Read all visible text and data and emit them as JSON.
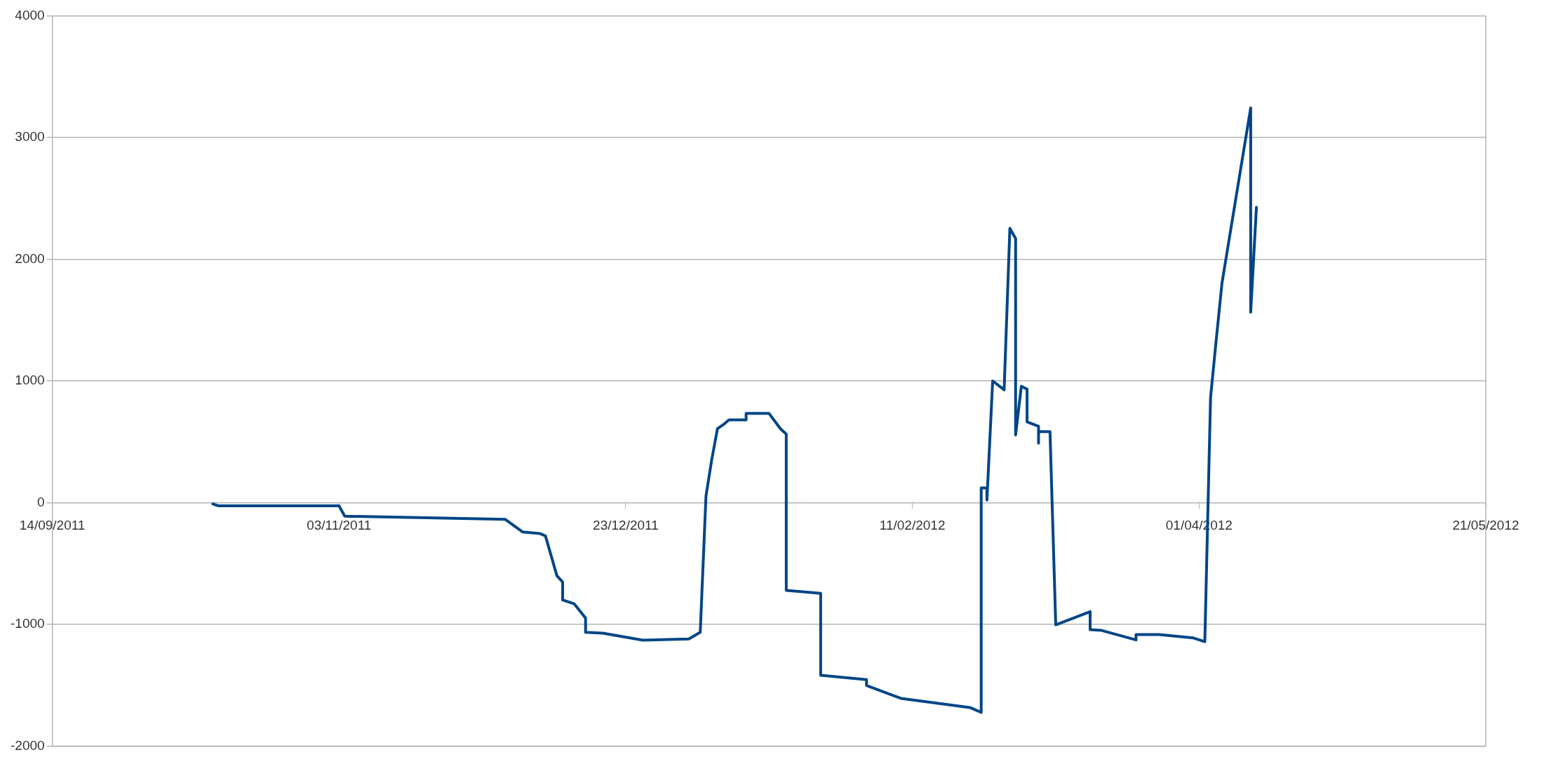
{
  "chart_data": {
    "type": "line",
    "x": [
      "2011-10-12",
      "2011-10-13",
      "2011-11-03",
      "2011-11-04",
      "2011-12-02",
      "2011-12-05",
      "2011-12-08",
      "2011-12-09",
      "2011-12-11",
      "2011-12-12",
      "2011-12-12",
      "2011-12-14",
      "2011-12-16",
      "2011-12-16",
      "2011-12-19",
      "2011-12-26",
      "2012-01-03",
      "2012-01-05",
      "2012-01-06",
      "2012-01-07",
      "2012-01-08",
      "2012-01-09",
      "2012-01-10",
      "2012-01-13",
      "2012-01-13",
      "2012-01-17",
      "2012-01-19",
      "2012-01-20",
      "2012-01-20",
      "2012-01-26",
      "2012-01-26",
      "2012-02-03",
      "2012-02-03",
      "2012-02-09",
      "2012-02-21",
      "2012-02-23",
      "2012-02-23",
      "2012-02-24",
      "2012-02-24",
      "2012-02-25",
      "2012-02-27",
      "2012-02-28",
      "2012-02-29",
      "2012-02-29",
      "2012-03-01",
      "2012-03-02",
      "2012-03-02",
      "2012-03-04",
      "2012-03-04",
      "2012-03-04",
      "2012-03-06",
      "2012-03-07",
      "2012-03-13",
      "2012-03-13",
      "2012-03-15",
      "2012-03-21",
      "2012-03-21",
      "2012-03-25",
      "2012-03-31",
      "2012-04-02",
      "2012-04-03",
      "2012-04-04",
      "2012-04-05",
      "2012-04-10",
      "2012-04-10",
      "2012-04-11"
    ],
    "series": [
      {
        "color": "#004586",
        "values": [
          -10,
          -26,
          -26,
          -111,
          -137,
          -240,
          -253,
          -273,
          -600,
          -652,
          -799,
          -830,
          -948,
          -1064,
          -1072,
          -1129,
          -1119,
          -1064,
          55,
          353,
          607,
          640,
          680,
          680,
          733,
          733,
          607,
          563,
          -720,
          -744,
          -1417,
          -1453,
          -1501,
          -1607,
          -1682,
          -1722,
          121,
          121,
          22,
          1000,
          927,
          2253,
          2170,
          556,
          957,
          932,
          664,
          627,
          488,
          583,
          583,
          -1003,
          -895,
          -1043,
          -1049,
          -1127,
          -1083,
          -1083,
          -1111,
          -1142,
          864,
          1343,
          1806,
          3243,
          1565,
          2426
        ]
      }
    ],
    "xlim": [
      "2011-09-14",
      "2012-05-21"
    ],
    "xticks": [
      {
        "value": "2011-09-14",
        "label": "14/09/2011"
      },
      {
        "value": "2011-11-03",
        "label": "03/11/2011"
      },
      {
        "value": "2011-12-23",
        "label": "23/12/2011"
      },
      {
        "value": "2012-02-11",
        "label": "11/02/2012"
      },
      {
        "value": "2012-04-01",
        "label": "01/04/2012"
      },
      {
        "value": "2012-05-21",
        "label": "21/05/2012"
      }
    ],
    "ylim": [
      -2000,
      4000
    ],
    "yticks": [
      -2000,
      -1000,
      0,
      1000,
      2000,
      3000,
      4000
    ],
    "grid": "y",
    "legend": false,
    "marker": "none",
    "line_style": "solid"
  }
}
